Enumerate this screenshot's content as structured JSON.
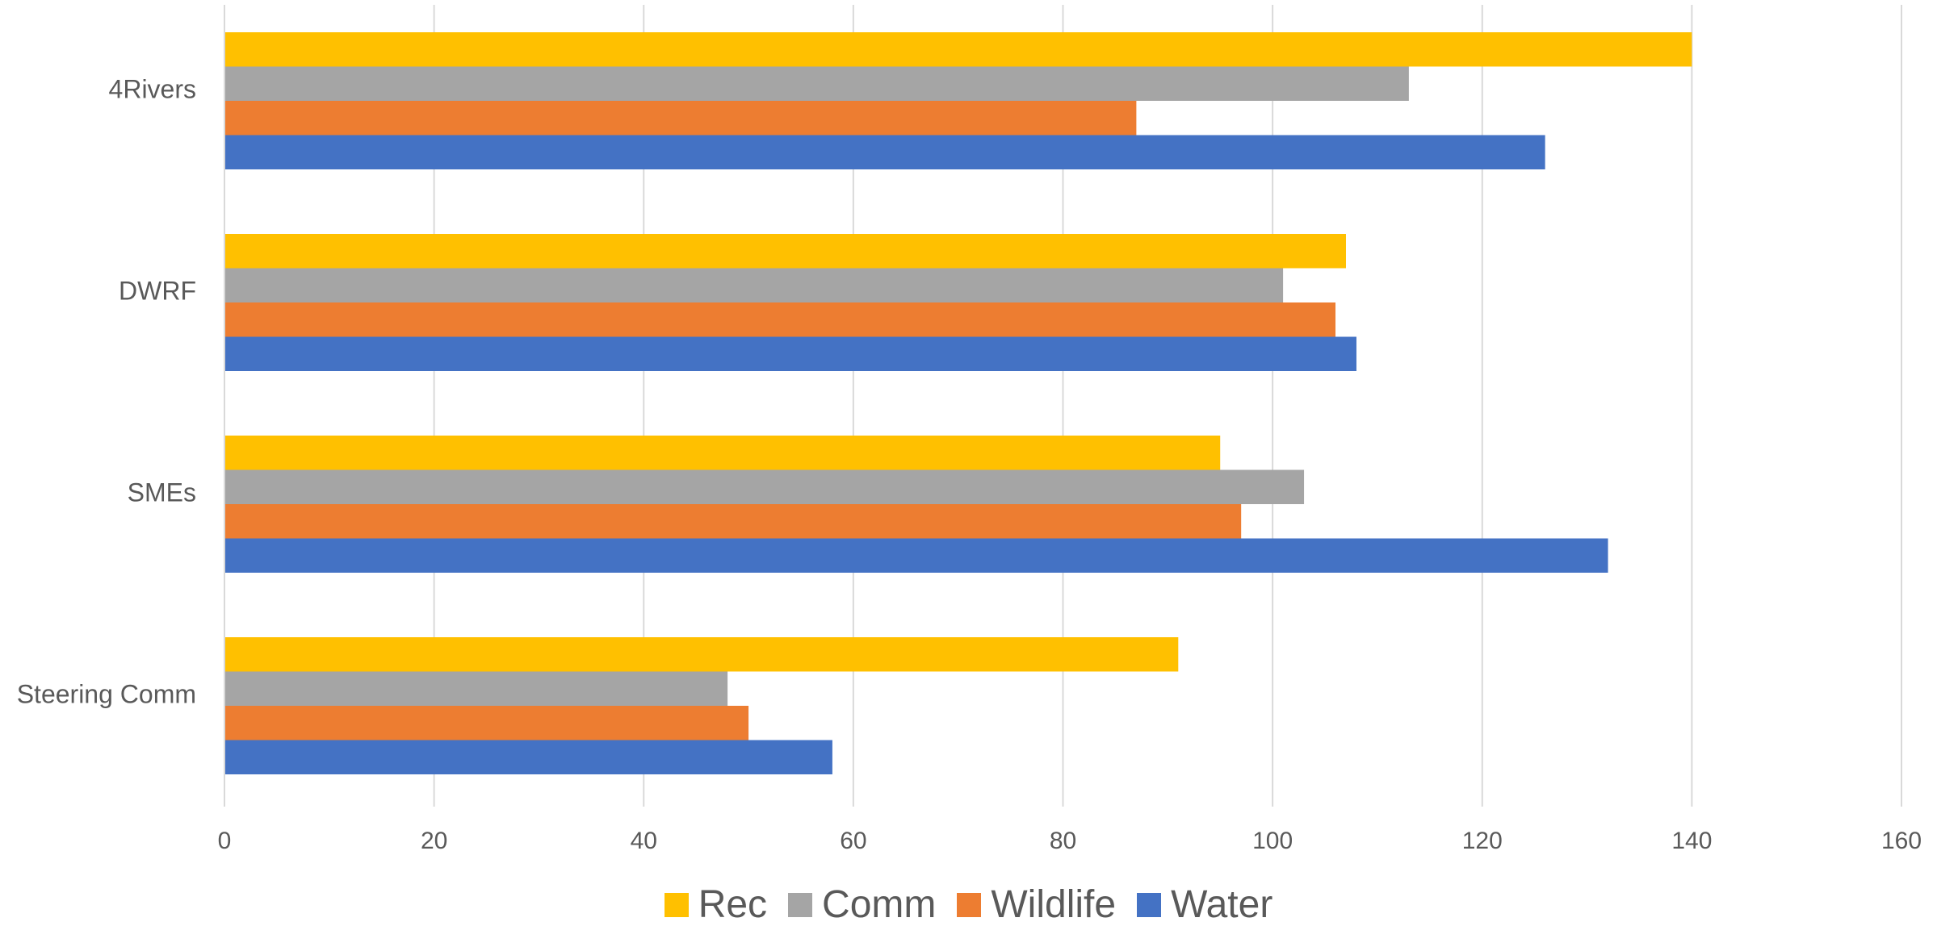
{
  "chart_data": {
    "type": "bar",
    "orientation": "horizontal",
    "categories": [
      "4Rivers",
      "DWRF",
      "SMEs",
      "Steering Comm"
    ],
    "series": [
      {
        "name": "Rec",
        "color": "#FFC000",
        "values": [
          140,
          107,
          95,
          91
        ]
      },
      {
        "name": "Comm",
        "color": "#A5A5A5",
        "values": [
          113,
          101,
          103,
          48
        ]
      },
      {
        "name": "Wildlife",
        "color": "#ED7D31",
        "values": [
          87,
          106,
          97,
          50
        ]
      },
      {
        "name": "Water",
        "color": "#4472C4",
        "values": [
          126,
          108,
          132,
          58
        ]
      }
    ],
    "x_ticks": [
      "0",
      "20",
      "40",
      "60",
      "80",
      "100",
      "120",
      "140",
      "160"
    ],
    "xlim": [
      0,
      160
    ],
    "grid": "vertical",
    "legend_position": "bottom"
  }
}
